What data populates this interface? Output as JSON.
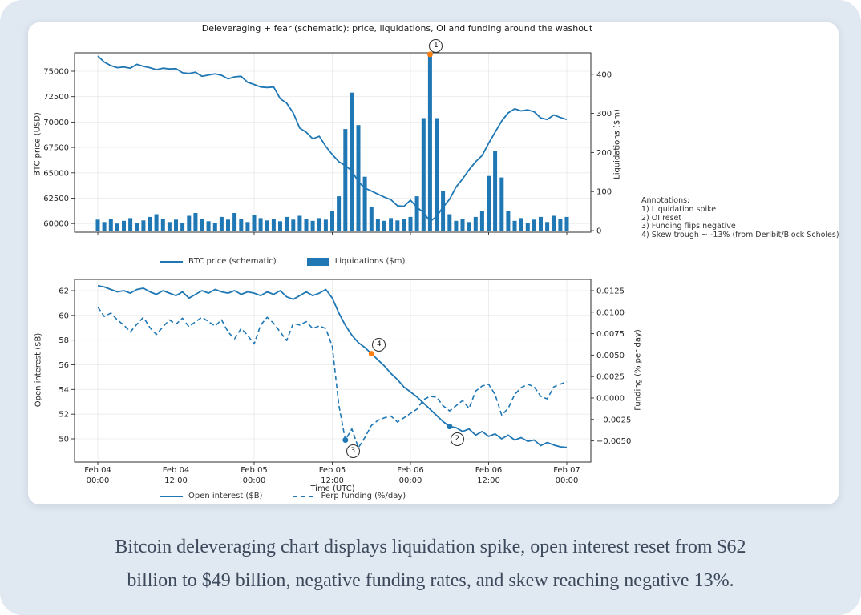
{
  "page": {
    "background": "#e0e8f1",
    "card_background": "#ffffff",
    "caption_line1": "Bitcoin deleveraging chart displays liquidation spike, open interest reset from $62",
    "caption_line2": "billion to $49 billion, negative funding rates, and skew reaching negative 13%."
  },
  "figure": {
    "annotations_note": {
      "heading": "Annotations:",
      "items": [
        "1) Liquidation spike",
        "2) OI reset",
        "3) Funding flips negative",
        "4) Skew trough ~ -13% (from Deribit/Block Scholes)"
      ]
    }
  },
  "chart_data": [
    {
      "type": "line+bar",
      "title": "Deleveraging + fear (schematic): price, liquidations, OI and funding around the washout",
      "x_unit": "hours from Feb 04 00:00 UTC",
      "x_tick_hours": [
        0,
        12,
        24,
        36,
        48,
        60,
        72
      ],
      "x_tick_labels": [
        [
          "Feb 04",
          "00:00"
        ],
        [
          "Feb 04",
          "12:00"
        ],
        [
          "Feb 05",
          "00:00"
        ],
        [
          "Feb 05",
          "12:00"
        ],
        [
          "Feb 06",
          "00:00"
        ],
        [
          "Feb 06",
          "12:00"
        ],
        [
          "Feb 07",
          "00:00"
        ]
      ],
      "left_axis": {
        "label": "BTC price (USD)",
        "tick_values": [
          60000,
          62500,
          65000,
          67500,
          70000,
          72500,
          75000
        ],
        "tick_labels": [
          "60000",
          "62500",
          "65000",
          "67500",
          "70000",
          "72500",
          "75000"
        ],
        "range": [
          59000,
          76800
        ]
      },
      "right_axis": {
        "label": "Liquidations ($m)",
        "tick_values": [
          0,
          100,
          200,
          300,
          400
        ],
        "tick_labels": [
          "0",
          "100",
          "200",
          "300",
          "400"
        ],
        "range": [
          0,
          460
        ]
      },
      "grid": true,
      "legend_position": "below",
      "series": [
        {
          "name": "BTC price (schematic)",
          "type": "line",
          "axis": "left",
          "color": "#1f77b4",
          "values": [
            76500,
            75900,
            75550,
            75350,
            75420,
            75300,
            75680,
            75480,
            75350,
            75150,
            75300,
            75220,
            75250,
            74850,
            74780,
            74900,
            74500,
            74620,
            74750,
            74600,
            74250,
            74450,
            74500,
            73900,
            73700,
            73450,
            73400,
            73450,
            72300,
            71850,
            70900,
            69400,
            69000,
            68350,
            68600,
            67600,
            66800,
            66100,
            65700,
            65200,
            64100,
            63500,
            63200,
            62900,
            62600,
            62350,
            61750,
            61700,
            62300,
            61600,
            61100,
            60200,
            60700,
            61600,
            62400,
            63600,
            64400,
            65300,
            66100,
            66700,
            67900,
            69000,
            70100,
            70900,
            71300,
            71100,
            71200,
            71000,
            70400,
            70250,
            70700,
            70450,
            70250
          ]
        },
        {
          "name": "Liquidations ($m)",
          "type": "bar",
          "axis": "right",
          "color": "#1f77b4",
          "values": [
            28,
            22,
            30,
            18,
            25,
            32,
            20,
            26,
            35,
            42,
            30,
            22,
            28,
            20,
            38,
            45,
            30,
            24,
            20,
            35,
            28,
            45,
            30,
            22,
            40,
            32,
            26,
            30,
            24,
            35,
            28,
            38,
            30,
            25,
            32,
            28,
            50,
            88,
            260,
            353,
            270,
            138,
            60,
            30,
            25,
            32,
            26,
            30,
            35,
            88,
            288,
            451,
            288,
            101,
            42,
            25,
            30,
            22,
            35,
            50,
            140,
            205,
            136,
            50,
            25,
            32,
            20,
            28,
            35,
            22,
            38,
            30,
            35
          ]
        }
      ],
      "markers": [
        {
          "label": "1",
          "t": 51,
          "axis": "right",
          "value": 451,
          "color": "#ff7f0e",
          "badge_dx": 7,
          "badge_dy": -11
        }
      ]
    },
    {
      "type": "line",
      "xlabel": "Time (UTC)",
      "x_tick_hours": [
        0,
        12,
        24,
        36,
        48,
        60,
        72
      ],
      "x_tick_labels": [
        [
          "Feb 04",
          "00:00"
        ],
        [
          "Feb 04",
          "12:00"
        ],
        [
          "Feb 05",
          "00:00"
        ],
        [
          "Feb 05",
          "12:00"
        ],
        [
          "Feb 06",
          "00:00"
        ],
        [
          "Feb 06",
          "12:00"
        ],
        [
          "Feb 07",
          "00:00"
        ]
      ],
      "left_axis": {
        "label": "Open interest ($B)",
        "tick_values": [
          50,
          52,
          54,
          56,
          58,
          60,
          62
        ],
        "tick_labels": [
          "50",
          "52",
          "54",
          "56",
          "58",
          "60",
          "62"
        ],
        "range": [
          48.1,
          62.9
        ]
      },
      "right_axis": {
        "label": "Funding (% per day)",
        "tick_values": [
          -0.005,
          -0.0025,
          0.0,
          0.0025,
          0.005,
          0.0075,
          0.01,
          0.0125
        ],
        "tick_labels": [
          "−0.0050",
          "−0.0025",
          "0.0000",
          "0.0025",
          "0.0050",
          "0.0075",
          "0.0100",
          "0.0125"
        ],
        "range": [
          -0.0074,
          0.0137
        ]
      },
      "grid": true,
      "legend_position": "below",
      "series": [
        {
          "name": "Open interest ($B)",
          "type": "line",
          "dash": "solid",
          "axis": "left",
          "color": "#1f77b4",
          "values": [
            62.4,
            62.3,
            62.1,
            61.9,
            62.0,
            61.8,
            62.1,
            62.2,
            61.9,
            61.7,
            62.0,
            61.8,
            61.6,
            61.9,
            61.4,
            61.7,
            62.0,
            61.8,
            62.1,
            61.9,
            61.8,
            62.0,
            61.7,
            61.9,
            61.8,
            61.6,
            61.9,
            61.7,
            62.0,
            61.5,
            61.3,
            61.6,
            61.9,
            61.6,
            61.8,
            62.1,
            61.4,
            60.2,
            59.2,
            58.4,
            57.8,
            57.4,
            56.9,
            56.4,
            55.9,
            55.3,
            54.8,
            54.2,
            53.8,
            53.4,
            52.9,
            52.4,
            51.9,
            51.4,
            51.0,
            50.9,
            50.6,
            50.8,
            50.3,
            50.6,
            50.2,
            50.4,
            50.0,
            50.3,
            49.9,
            50.1,
            49.8,
            49.9,
            49.45,
            49.7,
            49.5,
            49.35,
            49.3
          ]
        },
        {
          "name": "Perp funding (%/day)",
          "type": "line",
          "dash": "dashed",
          "axis": "right",
          "color": "#1f77b4",
          "values": [
            0.0106,
            0.0095,
            0.0099,
            0.0091,
            0.0085,
            0.0077,
            0.0086,
            0.0094,
            0.0082,
            0.0074,
            0.0083,
            0.0091,
            0.0086,
            0.0093,
            0.0083,
            0.0089,
            0.0094,
            0.0089,
            0.0084,
            0.0091,
            0.0077,
            0.0069,
            0.0081,
            0.0073,
            0.0063,
            0.0085,
            0.0094,
            0.0087,
            0.0077,
            0.0067,
            0.0087,
            0.0085,
            0.0089,
            0.0081,
            0.0084,
            0.0081,
            0.006,
            -0.0008,
            -0.0049,
            -0.0036,
            -0.0058,
            -0.0046,
            -0.0032,
            -0.0026,
            -0.0023,
            -0.0021,
            -0.0028,
            -0.0023,
            -0.0018,
            -0.0013,
            -0.0002,
            0.0002,
            0.0001,
            -0.0009,
            -0.0015,
            -0.0009,
            -0.0003,
            -0.0012,
            0.0008,
            0.0014,
            0.0016,
            0.0004,
            -0.002,
            -0.0012,
            0.0004,
            0.0012,
            0.0016,
            0.0013,
            0.0002,
            -0.0001,
            0.0013,
            0.0016,
            0.0019
          ]
        }
      ],
      "markers": [
        {
          "label": "4",
          "t": 42,
          "axis": "left",
          "value": 56.9,
          "color": "#ff7f0e",
          "badge_dx": 9,
          "badge_dy": -12
        },
        {
          "label": "2",
          "t": 54,
          "axis": "left",
          "value": 51.0,
          "color": "#1f77b4",
          "badge_dx": 9,
          "badge_dy": 15
        },
        {
          "label": "3",
          "t": 38,
          "axis": "right",
          "value": -0.0049,
          "color": "#1f77b4",
          "badge_dx": 9,
          "badge_dy": 13
        }
      ]
    }
  ]
}
